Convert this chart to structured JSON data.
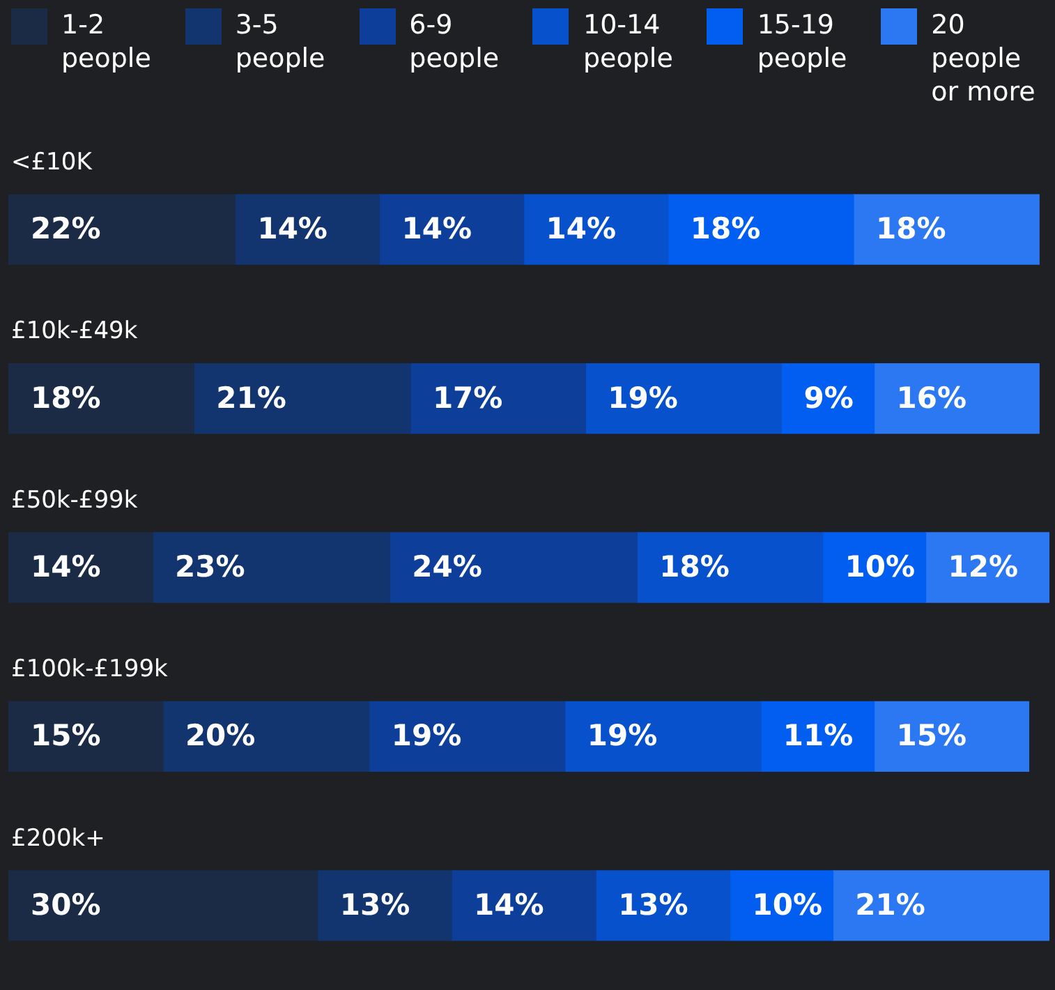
{
  "chart_data": {
    "type": "bar",
    "orientation": "horizontal",
    "stacked": true,
    "categories": [
      "<£10K",
      "£10k-£49k",
      "£50k-£99k",
      "£100k-£199k",
      "£200k+"
    ],
    "series": [
      {
        "name": "1-2 people",
        "color": "#1b2a45",
        "values": [
          22,
          18,
          14,
          15,
          30
        ],
        "value_labels": [
          "22%",
          "18%",
          "14%",
          "15%",
          "30%"
        ]
      },
      {
        "name": "3-5 people",
        "color": "#12346f",
        "values": [
          14,
          21,
          23,
          20,
          13
        ],
        "value_labels": [
          "14%",
          "21%",
          "23%",
          "20%",
          "13%"
        ]
      },
      {
        "name": "6-9 people",
        "color": "#0d3f9a",
        "values": [
          14,
          17,
          24,
          19,
          14
        ],
        "value_labels": [
          "14%",
          "17%",
          "24%",
          "19%",
          "14%"
        ]
      },
      {
        "name": "10-14 people",
        "color": "#0751cc",
        "values": [
          14,
          19,
          18,
          19,
          13
        ],
        "value_labels": [
          "14%",
          "19%",
          "18%",
          "19%",
          "13%"
        ]
      },
      {
        "name": "15-19 people",
        "color": "#015ef0",
        "values": [
          18,
          9,
          10,
          11,
          10
        ],
        "value_labels": [
          "18%",
          "9%",
          "10%",
          "11%",
          "10%"
        ]
      },
      {
        "name": "20 people or more",
        "color": "#2c77f2",
        "values": [
          18,
          16,
          12,
          15,
          21
        ],
        "value_labels": [
          "18%",
          "16%",
          "12%",
          "15%",
          "21%"
        ]
      }
    ],
    "legend": "top",
    "tick_labels": "y"
  }
}
